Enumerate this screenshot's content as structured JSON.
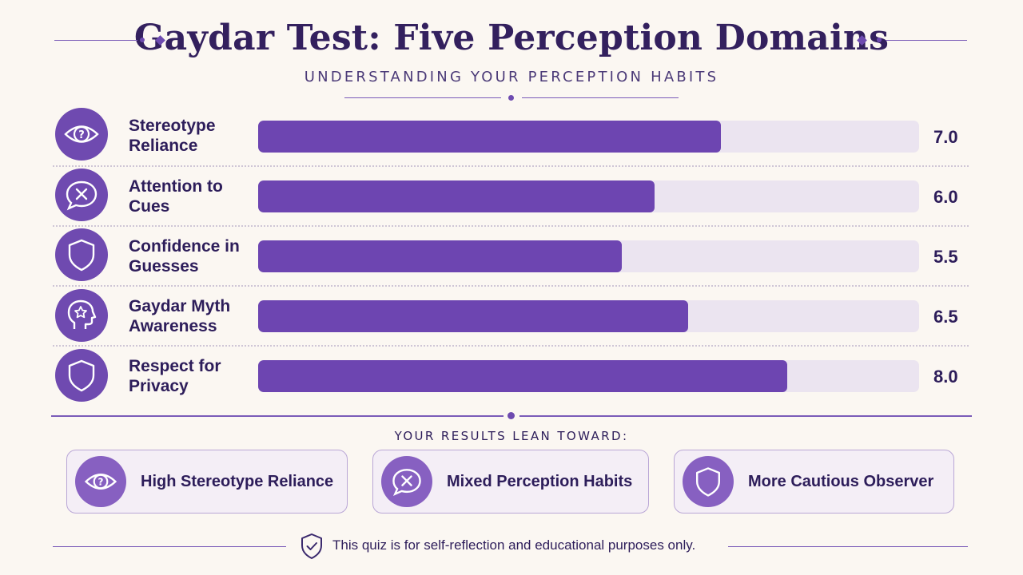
{
  "title": "Gaydar Test: Five Perception Domains",
  "subtitle": "UNDERSTANDING YOUR PERCEPTION HABITS",
  "chart_data": {
    "type": "bar",
    "orientation": "horizontal",
    "categories": [
      "Stereotype Reliance",
      "Attention to Cues",
      "Confidence in Guesses",
      "Gaydar Myth Awareness",
      "Respect for Privacy"
    ],
    "values": [
      7.0,
      6.0,
      5.5,
      6.5,
      8.0
    ],
    "value_labels": [
      "7.0",
      "6.0",
      "5.5",
      "6.5",
      "8.0"
    ],
    "xlim": [
      0,
      10
    ],
    "bar_color": "#6d45b1",
    "track_color": "#ebe4f0",
    "icons": [
      "eye-question-icon",
      "speech-bubble-x-icon",
      "shield-icon",
      "head-star-icon",
      "shield-icon"
    ]
  },
  "rows": [
    {
      "label_line1": "Stereotype",
      "label_line2": "Reliance",
      "value": "7.0"
    },
    {
      "label_line1": "Attention to",
      "label_line2": "Cues",
      "value": "6.0"
    },
    {
      "label_line1": "Confidence in",
      "label_line2": "Guesses",
      "value": "5.5"
    },
    {
      "label_line1": "Gaydar Myth",
      "label_line2": "Awareness",
      "value": "6.5"
    },
    {
      "label_line1": "Respect for",
      "label_line2": "Privacy",
      "value": "8.0"
    }
  ],
  "results": {
    "heading": "YOUR RESULTS LEAN TOWARD:",
    "cards": [
      {
        "label": "High Stereotype Reliance",
        "icon": "eye-question-icon"
      },
      {
        "label": "Mixed Perception Habits",
        "icon": "speech-bubble-x-icon"
      },
      {
        "label": "More Cautious Observer",
        "icon": "shield-icon"
      }
    ]
  },
  "footer": {
    "text": "This quiz is for self-reflection and educational purposes only.",
    "icon": "shield-check-icon"
  },
  "colors": {
    "accent": "#6d45b1",
    "title": "#33205e",
    "background": "#fbf7f2"
  }
}
